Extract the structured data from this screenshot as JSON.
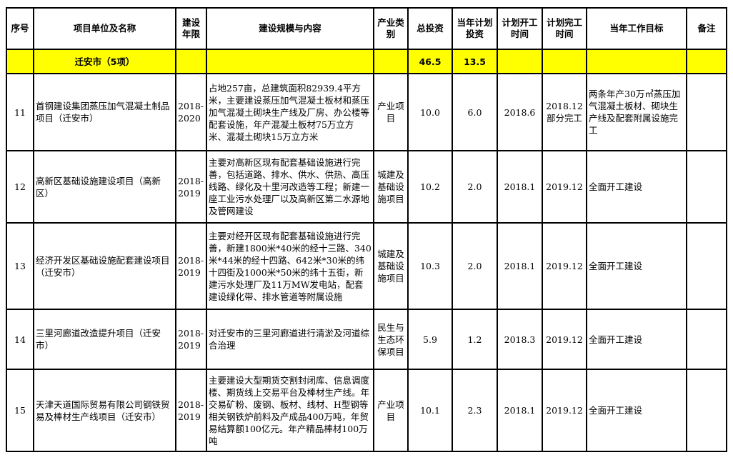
{
  "headers": [
    "序号",
    "项目单位及名称",
    "建设年限",
    "建设规模与内容",
    "产业类别",
    "总投资",
    "当年计划投资",
    "计划开工时间",
    "计划完工时间",
    "当年工作目标",
    "备注"
  ],
  "group": {
    "name": "迁安市（5项）",
    "total_investment": "46.5",
    "annual_investment": "13.5"
  },
  "rows": [
    {
      "no": "11",
      "name": "首钢建设集团蒸压加气混凝土制品项目（迁安市）",
      "period": "2018-2020",
      "content": "占地257亩，总建筑面积82939.4平方米，主要建设蒸压加气混凝土板材和蒸压加气混凝土砌块生产线及厂房、办公楼等配套设施，年产混凝土板材75万立方米、混凝土砌块15万立方米",
      "category": "产业项目",
      "total": "10.0",
      "annual": "6.0",
      "start": "2018.6",
      "end": "2018.12部分完工",
      "goal": "两条年产30万㎥蒸压加气混凝土板材、砌块生产线及配套附属设施完工",
      "note": ""
    },
    {
      "no": "12",
      "name": "高新区基础设施建设项目（高新区）",
      "period": "2018-2019",
      "content": "主要对高新区现有配套基础设施进行完善，包括道路、排水、供水、供热、高压线路、绿化及十里河改造等工程；新建一座工业污水处理厂以及高新区第二水源地及管网建设",
      "category": "城建及基础设施项目",
      "total": "10.2",
      "annual": "2.0",
      "start": "2018.1",
      "end": "2019.12",
      "goal": "全面开工建设",
      "note": ""
    },
    {
      "no": "13",
      "name": "经济开发区基础设施配套建设项目（迁安市）",
      "period": "2018-2019",
      "content": "主要对经开区现有配套基础设施进行完善，新建1800米*40米的经十三路、340米*44米的经十四路、642米*30米的纬十四街及1000米*50米的纬十五街，新建污水处理厂及11万MW发电站，配套建设绿化带、排水管道等附属设施",
      "category": "城建及基础设施项目",
      "total": "10.3",
      "annual": "2.0",
      "start": "2018.1",
      "end": "2019.12",
      "goal": "全面开工建设",
      "note": ""
    },
    {
      "no": "14",
      "name": "三里河廊道改造提升项目（迁安市）",
      "period": "2018-2019",
      "content": "对迁安市的三里河廊道进行清淤及河道综合治理",
      "category": "民生与生态环保项目",
      "total": "5.9",
      "annual": "1.2",
      "start": "2018.3",
      "end": "2019.12",
      "goal": "全面开工建设",
      "note": ""
    },
    {
      "no": "15",
      "name": "天津天道国际贸易有限公司钢铁贸易及棒材生产线项目（迁安市）",
      "period": "2018-2019",
      "content": "主要建设大型期货交割封闭库、信息调度楼、期货线上交易平台及棒材生产线。年交易矿粉、废钢、板材、线材、H型钢等相关钢铁炉前料及产成品400万吨，年贸易结算额100亿元。年产精品棒材100万吨",
      "category": "产业项目",
      "total": "10.1",
      "annual": "2.3",
      "start": "2018.1",
      "end": "2019.12",
      "goal": "全面开工建设",
      "note": ""
    }
  ],
  "colors": {
    "group_highlight": "#ffff00",
    "border": "#000000"
  }
}
